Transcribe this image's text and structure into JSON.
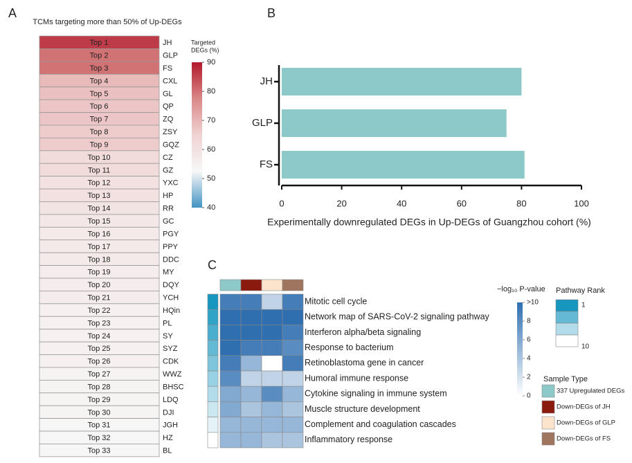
{
  "chart_data": [
    {
      "type": "heatmap",
      "panel": "A",
      "title": "TCMs targeting more than 50% of Up-DEGs",
      "rank_labels": [
        "Top 1",
        "Top 2",
        "Top 3",
        "Top 4",
        "Top 5",
        "Top 6",
        "Top 7",
        "Top 8",
        "Top 9",
        "Top 10",
        "Top 11",
        "Top 12",
        "Top 13",
        "Top 14",
        "Top 15",
        "Top 16",
        "Top 17",
        "Top 18",
        "Top 19",
        "Top 20",
        "Top 21",
        "Top 22",
        "Top 23",
        "Top 24",
        "Top 25",
        "Top 26",
        "Top 27",
        "Top 28",
        "Top 29",
        "Top 30",
        "Top 31",
        "Top 32",
        "Top 33"
      ],
      "categories": [
        "JH",
        "GLP",
        "FS",
        "CXL",
        "GL",
        "QP",
        "ZQ",
        "ZSY",
        "GQZ",
        "CZ",
        "GZ",
        "YXC",
        "HP",
        "RR",
        "GC",
        "PGY",
        "PPY",
        "DDC",
        "MY",
        "DQY",
        "YCH",
        "HQin",
        "PL",
        "SY",
        "SYZ",
        "CDK",
        "WWZ",
        "BHSC",
        "LDQ",
        "DJI",
        "JGH",
        "HZ",
        "BL"
      ],
      "values": [
        86,
        80,
        80,
        69,
        68,
        67,
        67,
        66,
        66,
        62,
        62,
        60,
        60,
        59,
        58,
        57,
        57,
        57,
        56,
        56,
        56,
        55,
        55,
        55,
        55,
        55,
        54,
        54,
        54,
        54,
        53,
        53,
        53
      ],
      "colorbar": {
        "title": [
          "Targeted",
          "DEGs (%)"
        ],
        "lim": [
          40,
          90
        ],
        "ticks": [
          40,
          50,
          60,
          70,
          80,
          90
        ],
        "colors": [
          "#4393c3",
          "#f7f7f7",
          "#f0d2d2",
          "#d98888",
          "#b2182b"
        ]
      }
    },
    {
      "type": "bar",
      "panel": "B",
      "orientation": "horizontal",
      "categories": [
        "JH",
        "GLP",
        "FS"
      ],
      "values": [
        80,
        75,
        81
      ],
      "color": "#8ec9c9",
      "xlim": [
        0,
        100
      ],
      "xticks": [
        0,
        20,
        40,
        60,
        80,
        100
      ],
      "xlabel": "Experimentally downregulated DEGs in Up-DEGs of Guangzhou cohort (%)"
    },
    {
      "type": "heatmap",
      "panel": "C",
      "categories": [
        "Mitotic cell cycle",
        "Network map of SARS-CoV-2 signaling pathway",
        "Interferon alpha/beta signaling",
        "Response to bacterium",
        "Retinoblastoma gene in cancer",
        "Humoral immune response",
        "Cytokine signaling in immune system",
        "Muscle structure development",
        "Complement and coagulation cascades",
        "Inflammatory response"
      ],
      "columns": [
        "337 Upregulated DEGs",
        "Down-DEGs of JH",
        "Down-DEGs of GLP",
        "Down-DEGs of FS"
      ],
      "column_colors": [
        "#8ec9c9",
        "#8b1a0e",
        "#fbe3cc",
        "#a07560"
      ],
      "values": [
        [
          9,
          9,
          3,
          9
        ],
        [
          10,
          10,
          10,
          10
        ],
        [
          10,
          10,
          10,
          9
        ],
        [
          10,
          9,
          9,
          8
        ],
        [
          9,
          5,
          0,
          9
        ],
        [
          8,
          3,
          3,
          3
        ],
        [
          6,
          5,
          8,
          5
        ],
        [
          6,
          4,
          5,
          4
        ],
        [
          5,
          5,
          5,
          5
        ],
        [
          5,
          5,
          4,
          4
        ]
      ],
      "ranks": [
        1,
        2,
        3,
        4,
        5,
        6,
        7,
        8,
        9,
        10
      ],
      "colorbar": {
        "title": "−log₁₀ P-value",
        "lim": [
          0,
          10
        ],
        "ticks": [
          0,
          2,
          4,
          6,
          8,
          {
            "value": 10,
            "label": ">10"
          }
        ],
        "colors": [
          "#ffffff",
          "#2f6fb0"
        ]
      },
      "rank_legend": {
        "title": "Pathway Rank",
        "values": [
          1,
          4,
          7,
          10
        ],
        "ticks": [
          1,
          10
        ],
        "colors": [
          "#1797c0",
          "#ffffff"
        ]
      },
      "legend_title": "Sample Type"
    }
  ]
}
